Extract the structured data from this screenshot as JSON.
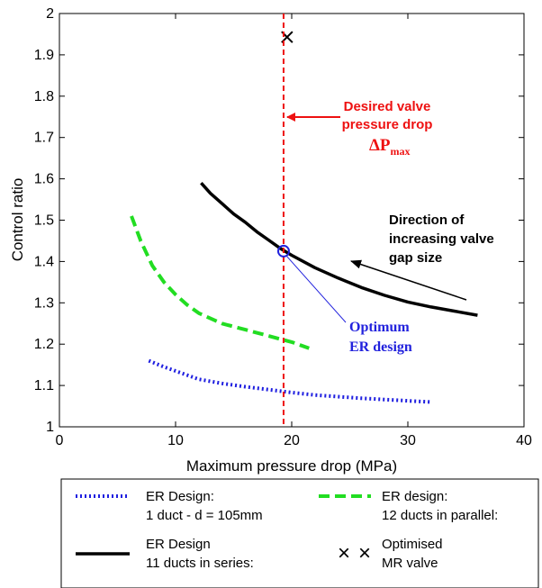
{
  "chart_data": {
    "type": "line",
    "xlabel": "Maximum pressure drop (MPa)",
    "ylabel": "Control ratio",
    "xlim": [
      0,
      40
    ],
    "ylim": [
      1,
      2
    ],
    "xticks": [
      "0",
      "10",
      "20",
      "30",
      "40"
    ],
    "yticks": [
      "1",
      "1.1",
      "1.2",
      "1.3",
      "1.4",
      "1.5",
      "1.6",
      "1.7",
      "1.8",
      "1.9",
      "2"
    ],
    "grid": false,
    "series": [
      {
        "name_lines": [
          "ER Design:",
          "1 duct - d = 105mm"
        ],
        "style": "dotted",
        "color": "#1f1fe0",
        "points": [
          [
            7.7,
            1.16
          ],
          [
            9,
            1.145
          ],
          [
            10,
            1.135
          ],
          [
            11,
            1.125
          ],
          [
            12,
            1.115
          ],
          [
            14,
            1.105
          ],
          [
            16,
            1.097
          ],
          [
            18,
            1.09
          ],
          [
            20,
            1.083
          ],
          [
            22,
            1.077
          ],
          [
            24,
            1.073
          ],
          [
            26,
            1.069
          ],
          [
            28,
            1.066
          ],
          [
            30,
            1.063
          ],
          [
            32,
            1.06
          ]
        ]
      },
      {
        "name_lines": [
          "ER design:",
          "12 ducts in parallel:"
        ],
        "style": "dashed",
        "color": "#22dd22",
        "points": [
          [
            6.2,
            1.51
          ],
          [
            7,
            1.45
          ],
          [
            8,
            1.39
          ],
          [
            9,
            1.35
          ],
          [
            10,
            1.32
          ],
          [
            11,
            1.295
          ],
          [
            12,
            1.275
          ],
          [
            14,
            1.25
          ],
          [
            16,
            1.235
          ],
          [
            18,
            1.22
          ],
          [
            20,
            1.205
          ],
          [
            21.5,
            1.19
          ]
        ]
      },
      {
        "name_lines": [
          "ER Design",
          "11 ducts in series:"
        ],
        "style": "solid",
        "color": "#000000",
        "points": [
          [
            12.2,
            1.59
          ],
          [
            13,
            1.565
          ],
          [
            14,
            1.54
          ],
          [
            15,
            1.515
          ],
          [
            16,
            1.495
          ],
          [
            17,
            1.472
          ],
          [
            18,
            1.452
          ],
          [
            19,
            1.432
          ],
          [
            20,
            1.415
          ],
          [
            22,
            1.385
          ],
          [
            24,
            1.36
          ],
          [
            26,
            1.337
          ],
          [
            28,
            1.318
          ],
          [
            30,
            1.302
          ],
          [
            32,
            1.29
          ],
          [
            34,
            1.28
          ],
          [
            36,
            1.27
          ]
        ]
      },
      {
        "name_lines": [
          "Optimised",
          "MR valve"
        ],
        "style": "marker-x",
        "color": "#000000",
        "points": [
          [
            19.6,
            1.943
          ]
        ]
      }
    ],
    "reference_line": {
      "x": 19.3,
      "color": "#ee1111"
    },
    "optimum_point": {
      "x": 19.3,
      "y": 1.425,
      "color": "#2222dd"
    },
    "annotations": {
      "desired_lines": [
        "Desired valve",
        "pressure drop"
      ],
      "delta_p": "ΔP",
      "delta_sub": "max",
      "direction_lines": [
        "Direction of",
        "increasing valve",
        "gap size"
      ],
      "optimum_lines": [
        "Optimum",
        "ER design"
      ],
      "marker_glyph": "×"
    }
  }
}
